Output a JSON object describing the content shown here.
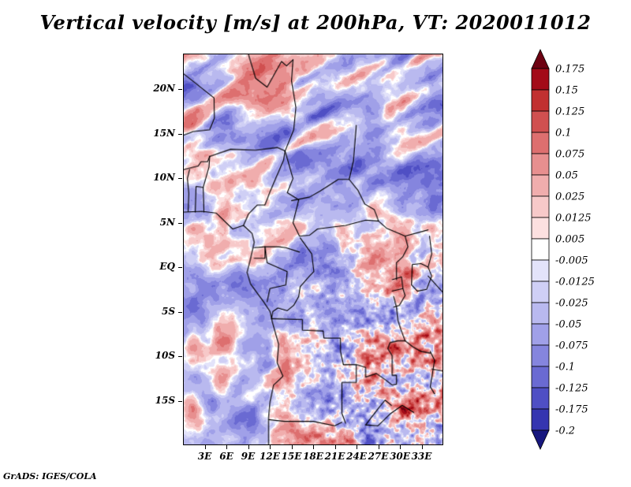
{
  "footer": "GrADS: IGES/COLA",
  "background": "#ffffff",
  "frame_color": "#000000",
  "chart_data": {
    "type": "heatmap",
    "title": "Vertical velocity [m/s] at 200hPa, VT: 2020011012",
    "variable": "Vertical velocity",
    "units": "m/s",
    "pressure_level": "200hPa",
    "valid_time": "2020011012",
    "grid": false,
    "legend_position": "right",
    "x_axis": {
      "tick_labels": [
        "3E",
        "6E",
        "9E",
        "12E",
        "15E",
        "18E",
        "21E",
        "24E",
        "27E",
        "30E",
        "33E"
      ],
      "tick_lons": [
        3,
        6,
        9,
        12,
        15,
        18,
        21,
        24,
        27,
        30,
        33
      ],
      "lon_range": [
        0,
        36
      ]
    },
    "y_axis": {
      "tick_labels": [
        "20N",
        "15N",
        "10N",
        "5N",
        "EQ",
        "5S",
        "10S",
        "15S"
      ],
      "tick_lats": [
        20,
        15,
        10,
        5,
        0,
        -5,
        -10,
        -15
      ],
      "lat_range": [
        -20,
        24
      ]
    },
    "colorbar": {
      "position": "right",
      "tick_labels": [
        "0.175",
        "0.15",
        "0.125",
        "0.1",
        "0.075",
        "0.05",
        "0.025",
        "0.0125",
        "0.005",
        "-0.005",
        "-0.0125",
        "-0.025",
        "-0.05",
        "-0.075",
        "-0.1",
        "-0.125",
        "-0.175",
        "-0.2"
      ],
      "levels": [
        0.175,
        0.15,
        0.125,
        0.1,
        0.075,
        0.05,
        0.025,
        0.0125,
        0.005,
        -0.005,
        -0.0125,
        -0.025,
        -0.05,
        -0.075,
        -0.1,
        -0.125,
        -0.175,
        -0.2
      ],
      "colors": [
        "#6d0212",
        "#a30b18",
        "#c13030",
        "#d05050",
        "#dd6f6f",
        "#e78f8f",
        "#f0adad",
        "#f7c9c9",
        "#fce0e0",
        "#ffffff",
        "#e3e3fa",
        "#cfcff5",
        "#b9b9ef",
        "#a0a0e8",
        "#8585de",
        "#6a6ad2",
        "#4f4fc4",
        "#3535b0",
        "#17177e"
      ]
    },
    "field_description": "Filled-contour vertical velocity field over equatorial Africa: alternating NE-SW tilted red/blue wave bands north of ~8N, broad pale-blue subsidence areas to the southwest, and fine speckled red ascent cells over the southeastern interior; national borders and lakes overlaid in black.",
    "map_borders": [
      [
        [
          0,
          6.2
        ],
        [
          2.5,
          6.3
        ],
        [
          4.5,
          6.1
        ],
        [
          6.8,
          4.3
        ],
        [
          8.3,
          4.7
        ],
        [
          9.5,
          3.8
        ],
        [
          9.8,
          2.8
        ],
        [
          9.3,
          1.0
        ],
        [
          8.8,
          -0.6
        ],
        [
          9.3,
          -1.9
        ],
        [
          11.1,
          -3.9
        ],
        [
          12.0,
          -5.0
        ],
        [
          12.3,
          -6.1
        ],
        [
          13.2,
          -8.7
        ],
        [
          13.0,
          -10.8
        ],
        [
          13.8,
          -12.3
        ],
        [
          12.5,
          -13.3
        ],
        [
          12.0,
          -15.2
        ],
        [
          11.8,
          -17.0
        ],
        [
          11.8,
          -20.0
        ]
      ],
      [
        [
          2.8,
          6.2
        ],
        [
          2.7,
          9.0
        ],
        [
          3.5,
          11.3
        ],
        [
          3.6,
          12.5
        ]
      ],
      [
        [
          1.6,
          6.2
        ],
        [
          1.7,
          9.1
        ],
        [
          2.7,
          9.0
        ]
      ],
      [
        [
          0.6,
          6.3
        ],
        [
          0.7,
          8.3
        ],
        [
          0.5,
          10.0
        ],
        [
          0.8,
          11.0
        ]
      ],
      [
        [
          0.0,
          11.0
        ],
        [
          2.0,
          11.4
        ],
        [
          2.4,
          11.9
        ],
        [
          3.3,
          11.9
        ],
        [
          3.6,
          12.5
        ]
      ],
      [
        [
          3.6,
          12.5
        ],
        [
          6.5,
          13.3
        ],
        [
          10.0,
          13.2
        ],
        [
          13.0,
          13.5
        ],
        [
          14.1,
          13.1
        ]
      ],
      [
        [
          14.1,
          13.1
        ],
        [
          15.3,
          15.5
        ],
        [
          15.6,
          18.0
        ],
        [
          15.0,
          21.0
        ],
        [
          15.2,
          23.4
        ]
      ],
      [
        [
          0.0,
          21.8
        ],
        [
          4.2,
          19.1
        ],
        [
          4.25,
          16.8
        ],
        [
          3.6,
          15.5
        ],
        [
          1.3,
          15.3
        ],
        [
          0.0,
          14.9
        ]
      ],
      [
        [
          9.0,
          24.0
        ],
        [
          10.0,
          21.3
        ],
        [
          11.6,
          20.3
        ],
        [
          13.6,
          23.2
        ],
        [
          14.3,
          22.7
        ],
        [
          15.2,
          23.4
        ]
      ],
      [
        [
          8.3,
          4.7
        ],
        [
          9.0,
          6.0
        ],
        [
          10.2,
          7.0
        ],
        [
          11.3,
          7.0
        ],
        [
          12.0,
          8.5
        ],
        [
          13.9,
          12.1
        ],
        [
          14.1,
          13.1
        ]
      ],
      [
        [
          14.1,
          13.1
        ],
        [
          15.2,
          10.0
        ],
        [
          14.4,
          8.4
        ],
        [
          16.0,
          7.6
        ],
        [
          15.2,
          5.0
        ],
        [
          16.1,
          3.5
        ],
        [
          17.5,
          3.6
        ],
        [
          18.6,
          4.3
        ],
        [
          20.5,
          4.5
        ],
        [
          22.5,
          4.7
        ],
        [
          25.3,
          5.3
        ],
        [
          27.1,
          5.2
        ]
      ],
      [
        [
          15.0,
          7.5
        ],
        [
          17.5,
          7.9
        ],
        [
          19.0,
          8.6
        ],
        [
          21.5,
          9.9
        ],
        [
          23.0,
          9.9
        ],
        [
          23.6,
          12.0
        ],
        [
          24.0,
          16.0
        ]
      ],
      [
        [
          23.0,
          9.9
        ],
        [
          24.2,
          8.7
        ],
        [
          25.2,
          7.1
        ],
        [
          26.5,
          6.5
        ],
        [
          27.1,
          5.2
        ]
      ],
      [
        [
          9.8,
          2.2
        ],
        [
          11.3,
          2.3
        ],
        [
          13.2,
          2.3
        ],
        [
          14.2,
          2.2
        ],
        [
          16.1,
          1.7
        ]
      ],
      [
        [
          9.8,
          1.0
        ],
        [
          11.3,
          1.0
        ],
        [
          11.3,
          2.3
        ]
      ],
      [
        [
          11.3,
          2.3
        ],
        [
          11.6,
          0.5
        ],
        [
          14.4,
          -0.5
        ],
        [
          14.2,
          -2.0
        ],
        [
          12.0,
          -2.4
        ],
        [
          11.6,
          -3.9
        ]
      ],
      [
        [
          16.2,
          3.3
        ],
        [
          17.8,
          1.5
        ],
        [
          18.1,
          -0.5
        ],
        [
          17.5,
          -1.0
        ],
        [
          16.2,
          -2.2
        ],
        [
          16.0,
          -3.3
        ],
        [
          15.3,
          -4.3
        ],
        [
          14.4,
          -4.9
        ],
        [
          13.1,
          -4.6
        ],
        [
          12.4,
          -5.0
        ],
        [
          12.2,
          -5.8
        ]
      ],
      [
        [
          12.2,
          -5.8
        ],
        [
          16.5,
          -5.9
        ],
        [
          16.5,
          -7.1
        ],
        [
          19.4,
          -7.2
        ],
        [
          19.5,
          -8.0
        ],
        [
          21.8,
          -8.0
        ],
        [
          21.8,
          -9.5
        ],
        [
          22.2,
          -11.0
        ],
        [
          24.0,
          -11.0
        ]
      ],
      [
        [
          24.0,
          -11.0
        ],
        [
          25.3,
          -11.3
        ],
        [
          25.3,
          -12.4
        ],
        [
          26.8,
          -12.0
        ],
        [
          28.2,
          -12.8
        ],
        [
          29.0,
          -13.3
        ],
        [
          29.6,
          -13.2
        ],
        [
          29.6,
          -12.2
        ],
        [
          29.0,
          -12.2
        ],
        [
          29.0,
          -10.0
        ],
        [
          28.4,
          -9.2
        ],
        [
          28.7,
          -8.5
        ],
        [
          29.8,
          -8.3
        ],
        [
          30.8,
          -8.3
        ]
      ],
      [
        [
          29.2,
          -3.3
        ],
        [
          29.6,
          -4.5
        ],
        [
          29.8,
          -6.0
        ],
        [
          30.2,
          -7.0
        ],
        [
          30.8,
          -8.3
        ]
      ],
      [
        [
          31.8,
          0.3
        ],
        [
          33.0,
          0.4
        ],
        [
          34.0,
          0.0
        ],
        [
          34.5,
          -1.0
        ],
        [
          33.8,
          -2.5
        ],
        [
          32.5,
          -2.7
        ],
        [
          31.7,
          -2.0
        ],
        [
          31.8,
          0.3
        ]
      ],
      [
        [
          34.3,
          -9.5
        ],
        [
          34.9,
          -10.5
        ],
        [
          34.6,
          -12.0
        ],
        [
          34.3,
          -13.5
        ],
        [
          34.9,
          -14.3
        ]
      ],
      [
        [
          29.6,
          -1.4
        ],
        [
          29.6,
          0.5
        ],
        [
          30.5,
          1.2
        ],
        [
          31.2,
          2.3
        ],
        [
          30.8,
          3.5
        ],
        [
          28.2,
          4.4
        ],
        [
          27.1,
          5.2
        ]
      ],
      [
        [
          30.8,
          3.5
        ],
        [
          34.0,
          4.2
        ]
      ],
      [
        [
          29.0,
          -1.4
        ],
        [
          30.3,
          -1.1
        ],
        [
          30.5,
          -2.4
        ],
        [
          29.0,
          -2.7
        ]
      ],
      [
        [
          30.5,
          -2.4
        ],
        [
          30.8,
          -3.2
        ],
        [
          30.0,
          -4.3
        ],
        [
          29.2,
          -4.5
        ]
      ],
      [
        [
          34.0,
          -1.0
        ],
        [
          36.0,
          -2.8
        ]
      ],
      [
        [
          34.0,
          0.0
        ],
        [
          34.5,
          1.5
        ],
        [
          34.2,
          3.5
        ]
      ],
      [
        [
          30.8,
          -8.3
        ],
        [
          31.9,
          -9.0
        ],
        [
          33.0,
          -9.5
        ],
        [
          34.3,
          -9.7
        ]
      ],
      [
        [
          24.0,
          -11.0
        ],
        [
          24.0,
          -13.0
        ],
        [
          22.0,
          -13.0
        ],
        [
          22.0,
          -16.5
        ],
        [
          22.5,
          -17.6
        ]
      ],
      [
        [
          11.8,
          -17.2
        ],
        [
          14.0,
          -17.4
        ],
        [
          18.0,
          -17.4
        ],
        [
          21.0,
          -17.9
        ],
        [
          22.0,
          -17.5
        ]
      ],
      [
        [
          25.3,
          -17.8
        ],
        [
          27.0,
          -17.9
        ],
        [
          28.8,
          -16.5
        ],
        [
          30.4,
          -15.6
        ],
        [
          32.0,
          -16.4
        ]
      ],
      [
        [
          28.9,
          -15.6
        ],
        [
          28.0,
          -15.0
        ],
        [
          27.0,
          -16.0
        ],
        [
          25.3,
          -17.8
        ]
      ],
      [
        [
          34.5,
          -11.5
        ],
        [
          36.0,
          -11.7
        ]
      ]
    ]
  }
}
